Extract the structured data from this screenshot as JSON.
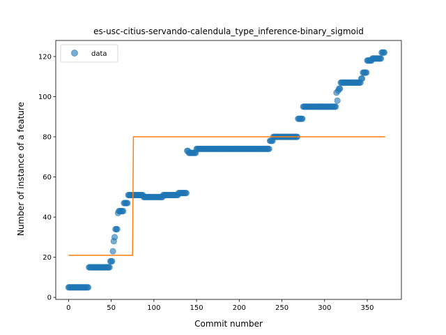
{
  "chart_data": {
    "type": "scatter",
    "title": "es-usc-citius-servando-calendula_type_inference-binary_sigmoid",
    "xlabel": "Commit number",
    "ylabel": "Number of instance of a feature",
    "xlim": [
      -15,
      390
    ],
    "ylim": [
      -1,
      128
    ],
    "xticks": [
      0,
      50,
      100,
      150,
      200,
      250,
      300,
      350
    ],
    "yticks": [
      0,
      20,
      40,
      60,
      80,
      100,
      120
    ],
    "grid": false,
    "legend": {
      "placement": "top-left",
      "entries": [
        "data"
      ]
    },
    "series": [
      {
        "name": "data",
        "kind": "scatter",
        "color": "#1f77b4",
        "steps": [
          [
            0,
            23,
            5
          ],
          [
            24,
            48,
            15
          ],
          [
            49,
            51,
            18
          ],
          [
            52,
            52,
            23
          ],
          [
            53,
            53,
            28
          ],
          [
            54,
            54,
            30
          ],
          [
            55,
            57,
            34
          ],
          [
            58,
            58,
            42
          ],
          [
            59,
            64,
            43
          ],
          [
            65,
            69,
            47
          ],
          [
            70,
            74,
            51
          ],
          [
            75,
            87,
            51
          ],
          [
            88,
            110,
            50
          ],
          [
            111,
            128,
            51
          ],
          [
            129,
            138,
            52
          ],
          [
            139,
            140,
            73
          ],
          [
            141,
            149,
            72
          ],
          [
            150,
            235,
            74
          ],
          [
            236,
            239,
            78
          ],
          [
            240,
            268,
            80
          ],
          [
            269,
            274,
            89
          ],
          [
            275,
            313,
            95
          ],
          [
            314,
            314,
            102
          ],
          [
            315,
            315,
            98
          ],
          [
            316,
            316,
            103
          ],
          [
            317,
            318,
            104
          ],
          [
            319,
            342,
            107
          ],
          [
            343,
            344,
            109
          ],
          [
            345,
            349,
            112
          ],
          [
            350,
            355,
            118
          ],
          [
            356,
            366,
            119
          ],
          [
            367,
            370,
            122
          ]
        ]
      },
      {
        "name": "",
        "kind": "line",
        "color": "#ff7f0e",
        "points": [
          [
            0,
            21
          ],
          [
            75,
            21
          ],
          [
            76,
            80
          ],
          [
            371,
            80
          ]
        ]
      }
    ]
  }
}
